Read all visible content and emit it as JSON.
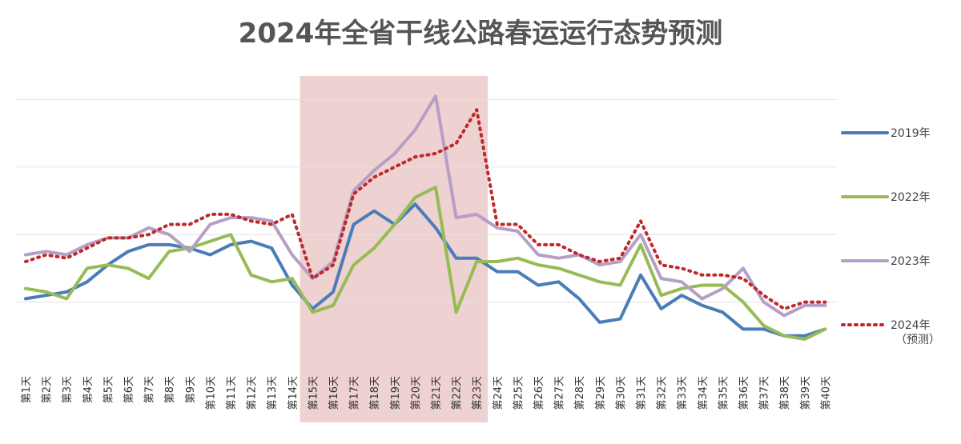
{
  "chart_data": {
    "type": "line",
    "title": "2024年全省干线公路春运运行态势预测",
    "categories": [
      "第1天",
      "第2天",
      "第3天",
      "第4天",
      "第5天",
      "第6天",
      "第7天",
      "第8天",
      "第9天",
      "第10天",
      "第11天",
      "第12天",
      "第13天",
      "第14天",
      "第15天",
      "第16天",
      "第17天",
      "第18天",
      "第19天",
      "第20天",
      "第21天",
      "第22天",
      "第23天",
      "第24天",
      "第25天",
      "第26天",
      "第27天",
      "第28天",
      "第29天",
      "第30天",
      "第31天",
      "第32天",
      "第33天",
      "第34天",
      "第35天",
      "第36天",
      "第37天",
      "第38天",
      "第39天",
      "第40天"
    ],
    "ylim": [
      0,
      100
    ],
    "grid": true,
    "highlight": {
      "from": "第15天",
      "to": "第23天",
      "color": "#ebc9c9"
    },
    "legend_position": "right",
    "series": [
      {
        "name": "2019年",
        "color": "#4a7db7",
        "style": "solid",
        "values": [
          21,
          22,
          23,
          26,
          31,
          35,
          37,
          37,
          36,
          34,
          37,
          38,
          36,
          25,
          18,
          23,
          43,
          47,
          43,
          49,
          42,
          33,
          33,
          29,
          29,
          25,
          26,
          21,
          14,
          15,
          28,
          18,
          22,
          19,
          17,
          12,
          12,
          10,
          10,
          12
        ]
      },
      {
        "name": "2022年",
        "color": "#97bb55",
        "style": "solid",
        "values": [
          24,
          23,
          21,
          30,
          31,
          30,
          27,
          35,
          36,
          38,
          40,
          28,
          26,
          27,
          17,
          19,
          31,
          36,
          43,
          51,
          54,
          17,
          32,
          32,
          33,
          31,
          30,
          28,
          26,
          25,
          37,
          22,
          24,
          25,
          25,
          20,
          13,
          10,
          9,
          12
        ]
      },
      {
        "name": "2023年",
        "color": "#b69fc4",
        "style": "solid",
        "values": [
          34,
          35,
          34,
          37,
          39,
          39,
          42,
          40,
          35,
          43,
          45,
          45,
          44,
          34,
          27,
          32,
          53,
          59,
          64,
          71,
          81,
          45,
          46,
          42,
          41,
          34,
          33,
          34,
          31,
          32,
          40,
          27,
          26,
          21,
          24,
          30,
          20,
          16,
          19,
          19
        ]
      },
      {
        "name": "2024年\n（预测）",
        "color": "#c0282a",
        "style": "dotted",
        "values": [
          32,
          34,
          33,
          36,
          39,
          39,
          40,
          43,
          43,
          46,
          46,
          44,
          43,
          46,
          27,
          31,
          52,
          57,
          60,
          63,
          64,
          67,
          77,
          43,
          43,
          37,
          37,
          34,
          32,
          33,
          44,
          31,
          30,
          28,
          28,
          27,
          22,
          18,
          20,
          20
        ]
      }
    ]
  }
}
